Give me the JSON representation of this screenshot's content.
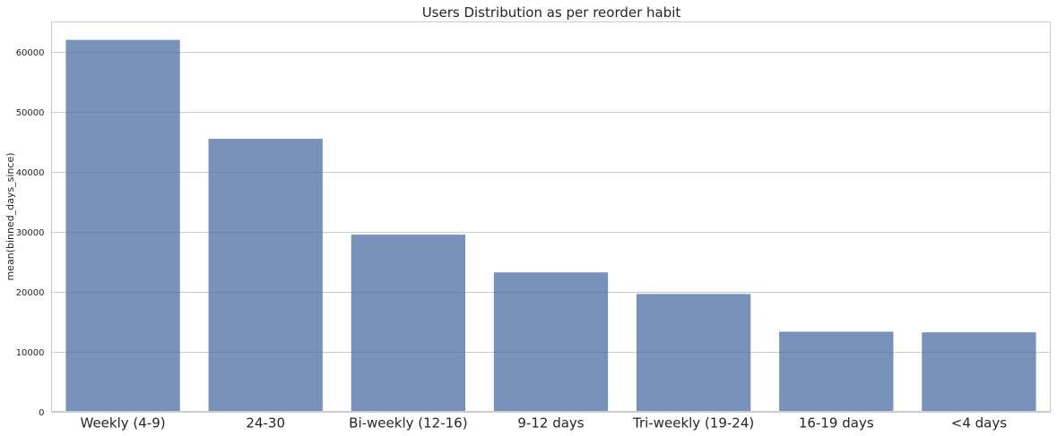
{
  "chart_data": {
    "type": "bar",
    "title": "Users Distribution as per reorder habit",
    "xlabel": "",
    "ylabel": "mean(binned_days_since)",
    "categories": [
      "Weekly (4-9)",
      "24-30",
      "Bi-weekly (12-16)",
      "9-12 days",
      "Tri-weekly (19-24)",
      "16-19 days",
      "<4 days"
    ],
    "values": [
      62000,
      45500,
      29500,
      23200,
      19600,
      13300,
      13200
    ],
    "ylim": [
      0,
      65000
    ],
    "yticks": [
      0,
      10000,
      20000,
      30000,
      40000,
      50000,
      60000
    ],
    "grid": true,
    "bar_color": "#4c6ea6"
  }
}
